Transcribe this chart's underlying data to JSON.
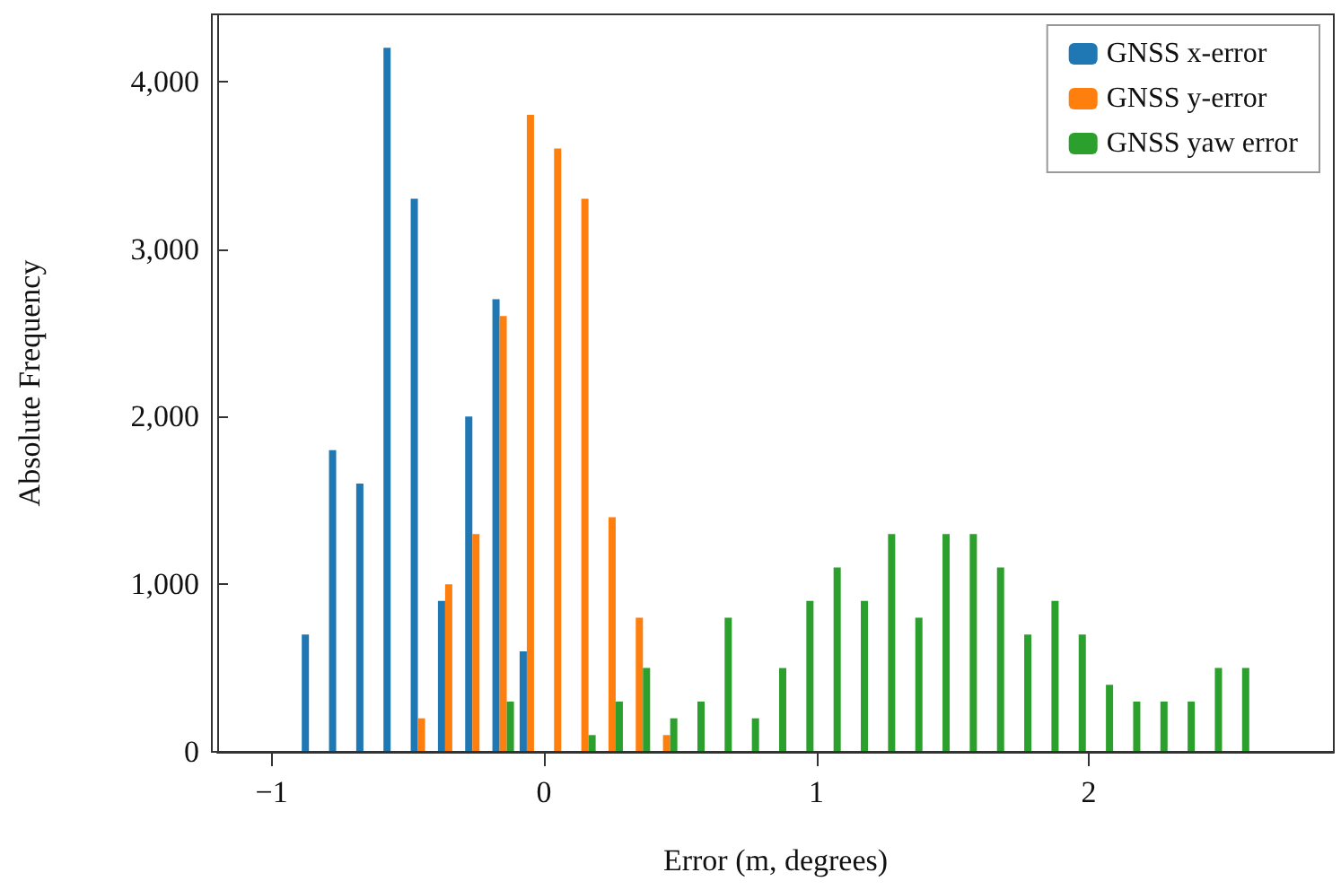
{
  "chart_data": {
    "type": "histogram",
    "xlabel": "Error (m, degrees)",
    "ylabel": "Absolute Frequency",
    "bins": [
      -1.1,
      -1.0,
      -0.9,
      -0.8,
      -0.7,
      -0.6,
      -0.5,
      -0.4,
      -0.3,
      -0.2,
      -0.1,
      0.0,
      0.1,
      0.2,
      0.3,
      0.4,
      0.5,
      0.6,
      0.7,
      0.8,
      0.9,
      1.0,
      1.1,
      1.2,
      1.3,
      1.4,
      1.5,
      1.6,
      1.7,
      1.8,
      1.9,
      2.0,
      2.1,
      2.2,
      2.3,
      2.4,
      2.5,
      2.6,
      2.7,
      2.8
    ],
    "series": [
      {
        "name": "GNSS x-error",
        "color": "#1f77b4",
        "values": [
          0,
          0,
          700,
          1800,
          1600,
          4200,
          3300,
          900,
          2000,
          2700,
          600,
          0,
          0,
          0,
          0,
          0,
          0,
          0,
          0,
          0,
          0,
          0,
          0,
          0,
          0,
          0,
          0,
          0,
          0,
          0,
          0,
          0,
          0,
          0,
          0,
          0,
          0,
          0,
          0
        ]
      },
      {
        "name": "GNSS y-error",
        "color": "#ff7f0e",
        "values": [
          0,
          0,
          0,
          0,
          0,
          0,
          200,
          1000,
          1300,
          2600,
          3800,
          3600,
          3300,
          1400,
          800,
          100,
          0,
          0,
          0,
          0,
          0,
          0,
          0,
          0,
          0,
          0,
          0,
          0,
          0,
          0,
          0,
          0,
          0,
          0,
          0,
          0,
          0,
          0,
          0
        ]
      },
      {
        "name": "GNSS yaw error",
        "color": "#2ca02c",
        "values": [
          0,
          0,
          0,
          0,
          0,
          0,
          0,
          0,
          0,
          300,
          0,
          0,
          100,
          300,
          500,
          200,
          300,
          800,
          200,
          500,
          900,
          1100,
          900,
          1300,
          800,
          1300,
          1300,
          1100,
          700,
          900,
          700,
          400,
          300,
          300,
          300,
          500,
          500,
          0,
          0
        ]
      }
    ],
    "xlim": [
      -1.2,
      2.9
    ],
    "xticks": [
      {
        "value": -1,
        "label": "−1"
      },
      0,
      1,
      2
    ],
    "ylim": [
      0,
      4400
    ],
    "yticks": [
      0,
      {
        "value": 1000,
        "label": "1,000"
      },
      {
        "value": 2000,
        "label": "2,000"
      },
      {
        "value": 3000,
        "label": "3,000"
      },
      {
        "value": 4000,
        "label": "4,000"
      }
    ],
    "grid": false,
    "legend": "top right"
  }
}
